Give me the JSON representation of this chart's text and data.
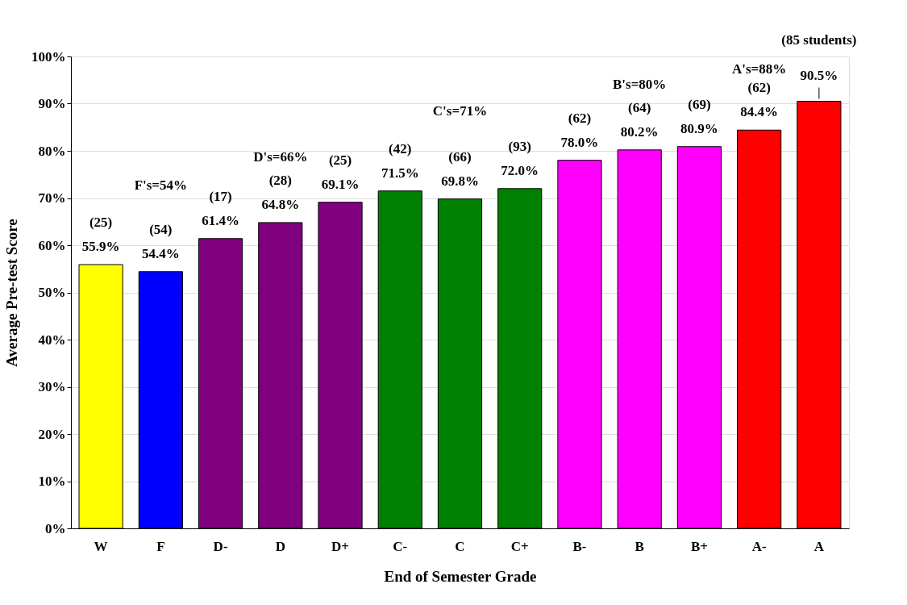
{
  "chart_data": {
    "type": "bar",
    "xlabel": "End of Semester Grade",
    "ylabel": "Average Pre-test Score",
    "categories": [
      "W",
      "F",
      "D-",
      "D",
      "D+",
      "C-",
      "C",
      "C+",
      "B-",
      "B",
      "B+",
      "A-",
      "A"
    ],
    "values": [
      55.9,
      54.4,
      61.4,
      64.8,
      69.1,
      71.5,
      69.8,
      72.0,
      78.0,
      80.2,
      80.9,
      84.4,
      90.5
    ],
    "colors": [
      "#ffff00",
      "#0000ff",
      "#800080",
      "#800080",
      "#800080",
      "#008000",
      "#008000",
      "#008000",
      "#ff00ff",
      "#ff00ff",
      "#ff00ff",
      "#ff0000",
      "#ff0000"
    ],
    "value_labels": [
      "55.9%",
      "54.4%",
      "61.4%",
      "64.8%",
      "69.1%",
      "71.5%",
      "69.8%",
      "72.0%",
      "78.0%",
      "80.2%",
      "80.9%",
      "84.4%",
      "90.5%"
    ],
    "annotations": [
      "(25)",
      "(54)",
      "(17)",
      "(28)",
      "(25)",
      "(42)",
      "(66)",
      "(93)",
      "(62)",
      "(64)",
      "(69)",
      "(62)",
      "(85 students)",
      "F's=54%",
      "D's=66%",
      "C's=71%",
      "B's=80%",
      "A's=88%"
    ],
    "ylim": [
      0,
      100
    ],
    "yticks": [
      {
        "value": 0,
        "label": "0%"
      },
      {
        "value": 10,
        "label": "10%"
      },
      {
        "value": 20,
        "label": "20%"
      },
      {
        "value": 30,
        "label": "30%"
      },
      {
        "value": 40,
        "label": "40%"
      },
      {
        "value": 50,
        "label": "50%"
      },
      {
        "value": 60,
        "label": "60%"
      },
      {
        "value": 70,
        "label": "70%"
      },
      {
        "value": 80,
        "label": "80%"
      },
      {
        "value": 90,
        "label": "90%"
      },
      {
        "value": 100,
        "label": "100%"
      }
    ],
    "grid": "y"
  }
}
